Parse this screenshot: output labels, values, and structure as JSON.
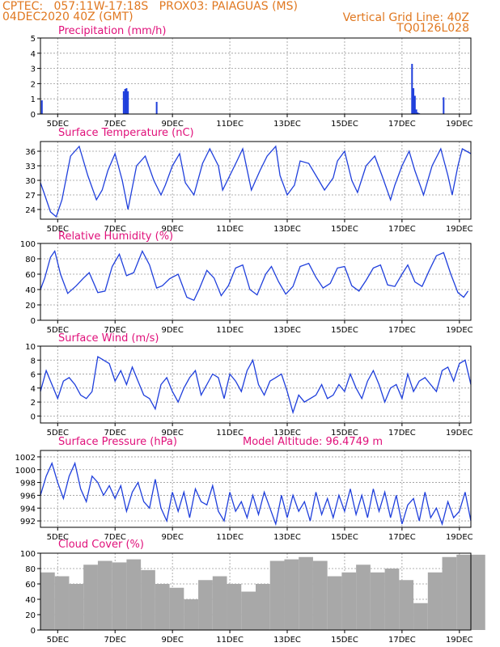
{
  "header": {
    "line1_left": "CPTEC:   057:11W-17:18S   PROX03: PAIAGUAS (MS)",
    "line2_left": "04DEC2020 40Z (GMT)",
    "line2_right": "Vertical Grid Line: 40Z",
    "line3_right": "TQ0126L028"
  },
  "colors": {
    "header": "#e07820",
    "title": "#e0107a",
    "series": "#1f3fdc",
    "cloud": "#a8a8a8"
  },
  "chart_data": [
    {
      "type": "bar",
      "title": "Precipitation (mm/h)",
      "ylim": [
        0,
        5
      ],
      "yticks": [
        "0",
        "1",
        "2",
        "3",
        "4",
        "5"
      ],
      "xticks": [
        "5DEC",
        "7DEC",
        "9DEC",
        "11DEC",
        "13DEC",
        "15DEC",
        "17DEC",
        "19DEC"
      ],
      "x": [
        0.05,
        2.9,
        2.95,
        3.0,
        3.05,
        4.05,
        12.95,
        13.0,
        13.05,
        13.1,
        13.15,
        13.2,
        13.25,
        14.05
      ],
      "values": [
        0.9,
        1.5,
        1.65,
        1.7,
        1.5,
        0.8,
        3.3,
        1.7,
        1.2,
        0.3,
        0.1,
        0.05,
        0.02,
        1.1
      ]
    },
    {
      "type": "line",
      "title": "Surface Temperature (nC)",
      "ylim": [
        22,
        38
      ],
      "yticks": [
        "24",
        "27",
        "30",
        "33",
        "36"
      ],
      "xticks": [
        "5DEC",
        "7DEC",
        "9DEC",
        "11DEC",
        "13DEC",
        "15DEC",
        "17DEC",
        "19DEC"
      ],
      "x": [
        0,
        0.15,
        0.35,
        0.55,
        0.75,
        1.05,
        1.35,
        1.65,
        1.95,
        2.15,
        2.35,
        2.6,
        2.85,
        3.05,
        3.35,
        3.65,
        3.95,
        4.2,
        4.35,
        4.6,
        4.85,
        5.05,
        5.35,
        5.65,
        5.9,
        6.2,
        6.35,
        6.6,
        6.85,
        7.05,
        7.35,
        7.65,
        7.9,
        8.2,
        8.35,
        8.6,
        8.85,
        9.05,
        9.35,
        9.65,
        9.9,
        10.2,
        10.35,
        10.6,
        10.85,
        11.05,
        11.35,
        11.65,
        11.9,
        12.2,
        12.35,
        12.6,
        12.85,
        13.05,
        13.35,
        13.65,
        13.95,
        14.2,
        14.35,
        14.55,
        14.7,
        15.0
      ],
      "values": [
        29.5,
        27,
        23.5,
        22.5,
        26,
        35,
        37,
        31,
        26,
        28,
        32,
        35.5,
        30,
        24,
        33,
        35,
        30,
        27,
        29,
        33,
        35.5,
        29.5,
        27,
        33.5,
        36.5,
        33,
        28,
        31,
        34,
        36.5,
        28,
        32,
        35,
        37,
        31,
        27,
        29,
        34,
        33.5,
        30.5,
        28,
        30.5,
        34,
        36,
        30,
        27.5,
        33,
        35,
        31,
        26,
        29,
        33,
        36,
        32,
        27,
        33,
        36.5,
        31,
        27,
        33,
        36.5,
        35.5
      ]
    },
    {
      "type": "line",
      "title": "Relative Humidity (%)",
      "ylim": [
        0,
        100
      ],
      "yticks": [
        "0",
        "20",
        "40",
        "60",
        "80",
        "100"
      ],
      "xticks": [
        "5DEC",
        "7DEC",
        "9DEC",
        "11DEC",
        "13DEC",
        "15DEC",
        "17DEC",
        "19DEC"
      ],
      "x": [
        0,
        0.15,
        0.35,
        0.5,
        0.7,
        0.95,
        1.25,
        1.5,
        1.7,
        2.0,
        2.25,
        2.5,
        2.75,
        3.0,
        3.25,
        3.55,
        3.8,
        4.05,
        4.25,
        4.5,
        4.8,
        5.1,
        5.35,
        5.55,
        5.8,
        6.05,
        6.3,
        6.55,
        6.8,
        7.05,
        7.3,
        7.55,
        7.85,
        8.05,
        8.3,
        8.55,
        8.8,
        9.05,
        9.35,
        9.6,
        9.85,
        10.1,
        10.35,
        10.6,
        10.85,
        11.1,
        11.35,
        11.6,
        11.85,
        12.1,
        12.35,
        12.6,
        12.8,
        13.05,
        13.3,
        13.55,
        13.8,
        14.05,
        14.3,
        14.55,
        14.75,
        14.9
      ],
      "values": [
        40,
        55,
        82,
        90,
        60,
        35,
        45,
        55,
        62,
        36,
        38,
        70,
        86,
        58,
        62,
        90,
        72,
        42,
        45,
        54,
        60,
        30,
        26,
        42,
        65,
        55,
        32,
        45,
        68,
        72,
        40,
        33,
        60,
        70,
        50,
        34,
        44,
        70,
        74,
        56,
        42,
        48,
        68,
        70,
        45,
        38,
        52,
        68,
        72,
        46,
        44,
        60,
        72,
        50,
        44,
        65,
        84,
        88,
        60,
        36,
        30,
        38
      ]
    },
    {
      "type": "line",
      "title": "Surface Wind (m/s)",
      "ylim": [
        -1,
        10
      ],
      "yticks": [
        "0",
        "2",
        "4",
        "6",
        "8",
        "10"
      ],
      "xticks": [
        "5DEC",
        "7DEC",
        "9DEC",
        "11DEC",
        "13DEC",
        "15DEC",
        "17DEC",
        "19DEC"
      ],
      "x": [
        0,
        0.2,
        0.4,
        0.6,
        0.8,
        1.0,
        1.2,
        1.4,
        1.6,
        1.8,
        2.0,
        2.2,
        2.4,
        2.6,
        2.8,
        3.0,
        3.2,
        3.4,
        3.6,
        3.8,
        4.0,
        4.2,
        4.4,
        4.6,
        4.8,
        5.0,
        5.2,
        5.4,
        5.6,
        5.8,
        6.0,
        6.2,
        6.4,
        6.6,
        6.8,
        7.0,
        7.2,
        7.4,
        7.6,
        7.8,
        8.0,
        8.2,
        8.4,
        8.6,
        8.8,
        9.0,
        9.2,
        9.4,
        9.6,
        9.8,
        10.0,
        10.2,
        10.4,
        10.6,
        10.8,
        11.0,
        11.2,
        11.4,
        11.6,
        11.8,
        12.0,
        12.2,
        12.4,
        12.6,
        12.8,
        13.0,
        13.2,
        13.4,
        13.6,
        13.8,
        14.0,
        14.2,
        14.4,
        14.6,
        14.8,
        15.0
      ],
      "values": [
        3.5,
        6.5,
        4.5,
        2.5,
        5.0,
        5.5,
        4.5,
        3.0,
        2.5,
        3.5,
        8.5,
        8.0,
        7.5,
        5.0,
        6.5,
        4.5,
        7.0,
        5.0,
        3.0,
        2.5,
        1.0,
        4.5,
        5.5,
        3.5,
        2.0,
        4.0,
        5.5,
        6.5,
        3.0,
        4.5,
        6.0,
        5.5,
        2.5,
        6.0,
        5.0,
        3.5,
        6.5,
        8.0,
        4.5,
        3.0,
        5.0,
        5.5,
        6.0,
        3.5,
        0.5,
        3.0,
        2.0,
        2.5,
        3.0,
        4.5,
        2.5,
        3.0,
        4.5,
        3.5,
        6.0,
        4.0,
        2.5,
        5.0,
        6.5,
        4.5,
        2.0,
        4.0,
        4.5,
        2.5,
        6.0,
        3.5,
        5.0,
        5.5,
        4.5,
        3.5,
        6.5,
        7.0,
        5.0,
        7.5,
        8.0,
        4.5
      ]
    },
    {
      "type": "line",
      "title": "Surface Pressure (hPa)",
      "subtitle": "Model Altitude: 96.4749 m",
      "ylim": [
        991,
        1003
      ],
      "yticks": [
        "992",
        "994",
        "996",
        "998",
        "1000",
        "1002"
      ],
      "xticks": [
        "5DEC",
        "7DEC",
        "9DEC",
        "11DEC",
        "13DEC",
        "15DEC",
        "17DEC",
        "19DEC"
      ],
      "x": [
        0,
        0.2,
        0.4,
        0.6,
        0.8,
        1.0,
        1.2,
        1.4,
        1.6,
        1.8,
        2.0,
        2.2,
        2.4,
        2.6,
        2.8,
        3.0,
        3.2,
        3.4,
        3.6,
        3.8,
        4.0,
        4.2,
        4.4,
        4.6,
        4.8,
        5.0,
        5.2,
        5.4,
        5.6,
        5.8,
        6.0,
        6.2,
        6.4,
        6.6,
        6.8,
        7.0,
        7.2,
        7.4,
        7.6,
        7.8,
        8.0,
        8.2,
        8.4,
        8.6,
        8.8,
        9.0,
        9.2,
        9.4,
        9.6,
        9.8,
        10.0,
        10.2,
        10.4,
        10.6,
        10.8,
        11.0,
        11.2,
        11.4,
        11.6,
        11.8,
        12.0,
        12.2,
        12.4,
        12.6,
        12.8,
        13.0,
        13.2,
        13.4,
        13.6,
        13.8,
        14.0,
        14.2,
        14.4,
        14.6,
        14.8,
        15.0
      ],
      "values": [
        996,
        999,
        1001,
        998,
        995.5,
        999,
        1001,
        997,
        995,
        999,
        998,
        996,
        997.5,
        995.5,
        997.5,
        993.5,
        996.5,
        998,
        995,
        994,
        998.5,
        994,
        992,
        996.5,
        993.5,
        996.5,
        992.5,
        997,
        995,
        994.5,
        997.5,
        993.5,
        992,
        996.5,
        993.5,
        995,
        992.5,
        996,
        993,
        996.5,
        994,
        991.5,
        996,
        992.5,
        996,
        993.5,
        995,
        992,
        996.5,
        993,
        995.5,
        992.5,
        996,
        993.5,
        997,
        993,
        996,
        992.5,
        997,
        993.5,
        996.5,
        992.5,
        996,
        991.5,
        994.5,
        995.5,
        992,
        996.5,
        992.5,
        994,
        991.5,
        995,
        992.5,
        993.5,
        996.5,
        992
      ]
    },
    {
      "type": "bar",
      "title": "Cloud Cover (%)",
      "ylim": [
        0,
        100
      ],
      "yticks": [
        "0",
        "20",
        "40",
        "60",
        "80",
        "100"
      ],
      "xticks": [
        "5DEC",
        "7DEC",
        "9DEC",
        "11DEC",
        "13DEC",
        "15DEC",
        "17DEC",
        "19DEC"
      ],
      "x": [
        0,
        0.5,
        1.0,
        1.5,
        2.0,
        2.5,
        3.0,
        3.5,
        4.0,
        4.5,
        5.0,
        5.5,
        6.0,
        6.5,
        7.0,
        7.5,
        8.0,
        8.5,
        9.0,
        9.5,
        10.0,
        10.5,
        11.0,
        11.5,
        12.0,
        12.5,
        13.0,
        13.5,
        14.0,
        14.5,
        15.0
      ],
      "values": [
        75,
        70,
        60,
        85,
        90,
        88,
        92,
        78,
        60,
        55,
        40,
        65,
        70,
        60,
        50,
        60,
        90,
        92,
        95,
        90,
        70,
        75,
        85,
        75,
        80,
        65,
        35,
        75,
        95,
        98,
        98
      ]
    }
  ]
}
